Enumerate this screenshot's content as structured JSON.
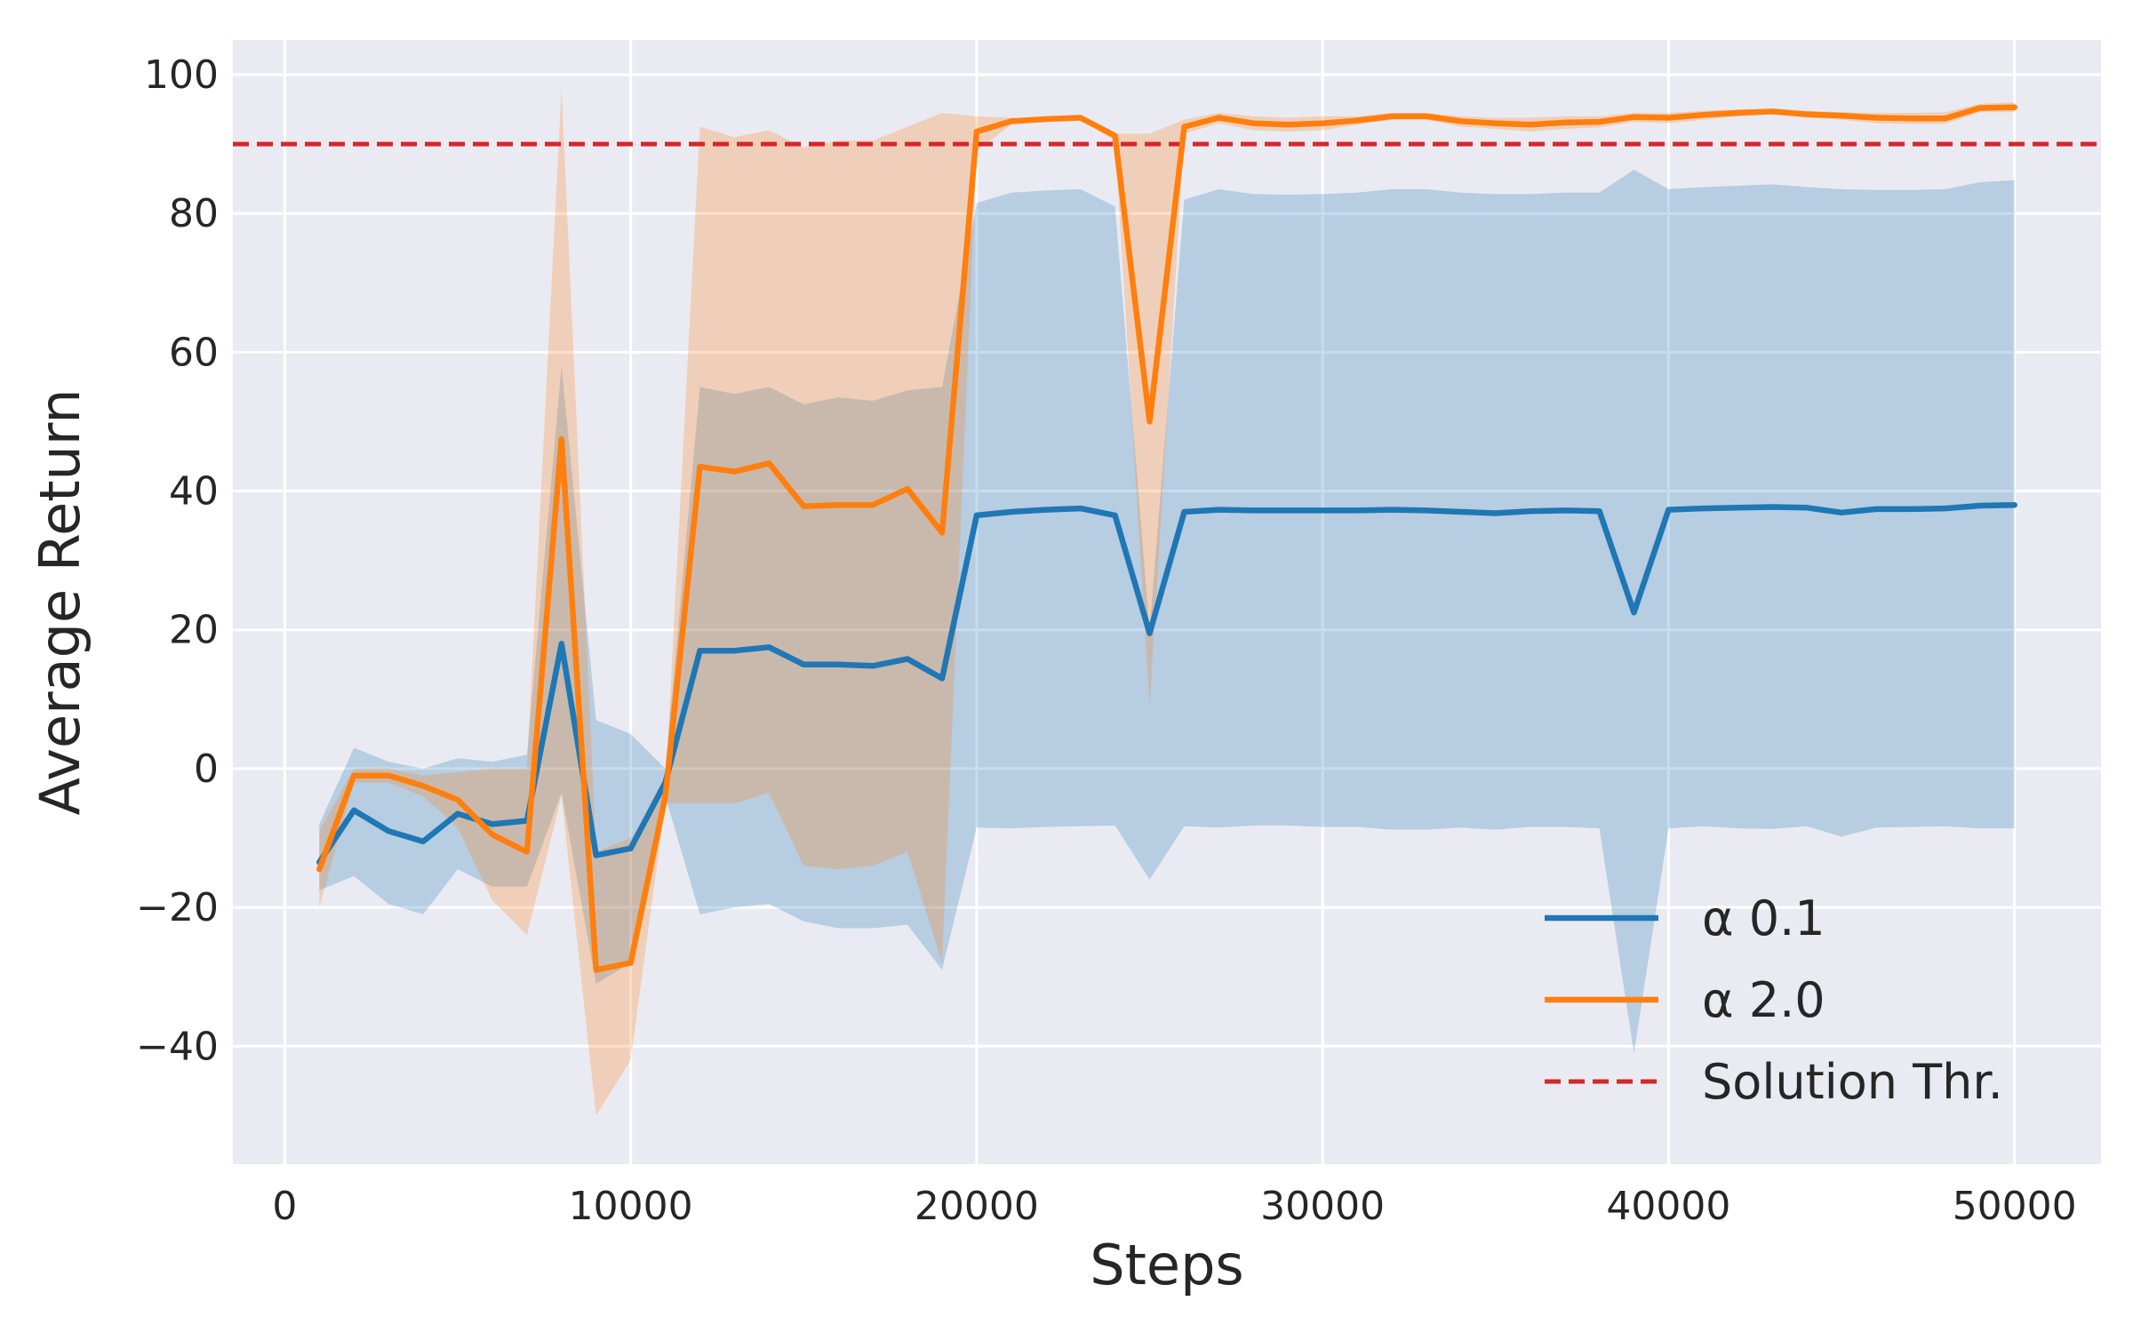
{
  "chart_data": {
    "type": "line",
    "title": "",
    "xlabel": "Steps",
    "ylabel": "Average Return",
    "xlim": [
      -1500,
      52500
    ],
    "ylim": [
      -57,
      105
    ],
    "xticks": [
      0,
      10000,
      20000,
      30000,
      40000,
      50000
    ],
    "xtick_labels": [
      "0",
      "10000",
      "20000",
      "30000",
      "40000",
      "50000"
    ],
    "yticks": [
      -40,
      -20,
      0,
      20,
      40,
      60,
      80,
      100
    ],
    "ytick_labels": [
      "−40",
      "−20",
      "0",
      "20",
      "40",
      "60",
      "80",
      "100"
    ],
    "grid": true,
    "legend_position": "lower-right",
    "x": [
      1000,
      2000,
      3000,
      4000,
      5000,
      6000,
      7000,
      8000,
      9000,
      10000,
      11000,
      12000,
      13000,
      14000,
      15000,
      16000,
      17000,
      18000,
      19000,
      20000,
      21000,
      22000,
      23000,
      24000,
      25000,
      26000,
      27000,
      28000,
      29000,
      30000,
      31000,
      32000,
      33000,
      34000,
      35000,
      36000,
      37000,
      38000,
      39000,
      40000,
      41000,
      42000,
      43000,
      44000,
      45000,
      46000,
      47000,
      48000,
      49000,
      50000
    ],
    "series": [
      {
        "name": "α 0.1",
        "color": "#1f77b4",
        "values": [
          -13.5,
          -6,
          -9,
          -10.5,
          -6.5,
          -8,
          -7.5,
          18,
          -12.5,
          -11.5,
          -2,
          17,
          17,
          17.5,
          15,
          15,
          14.8,
          15.8,
          13,
          36.5,
          37,
          37.3,
          37.5,
          36.5,
          19.5,
          37,
          37.3,
          37.2,
          37.2,
          37.2,
          37.2,
          37.3,
          37.2,
          37,
          36.8,
          37.1,
          37.2,
          37.1,
          22.5,
          37.3,
          37.5,
          37.6,
          37.7,
          37.6,
          36.9,
          37.4,
          37.4,
          37.5,
          37.9,
          38
        ],
        "band_upper": [
          -8,
          3,
          1,
          0,
          1.5,
          1,
          2,
          58,
          7,
          5,
          0,
          55,
          54,
          55,
          52.5,
          53.5,
          53,
          54.5,
          55,
          81.5,
          83,
          83.3,
          83.5,
          81,
          20,
          82,
          83.5,
          82.8,
          82.7,
          82.8,
          83,
          83.5,
          83.5,
          83,
          82.8,
          82.8,
          83,
          83,
          86.3,
          83.5,
          83.8,
          84,
          84.2,
          83.8,
          83.5,
          83.4,
          83.4,
          83.5,
          84.5,
          84.8
        ],
        "band_lower": [
          -17.5,
          -15.5,
          -19.5,
          -21,
          -14.5,
          -17,
          -17,
          -3.5,
          -31,
          -28,
          -4,
          -21,
          -20,
          -19.5,
          -22,
          -23,
          -23,
          -22.5,
          -29,
          -8.5,
          -8.6,
          -8.4,
          -8.3,
          -8.2,
          -16,
          -8.3,
          -8.5,
          -8.2,
          -8.2,
          -8.4,
          -8.4,
          -8.8,
          -8.8,
          -8.5,
          -8.8,
          -8.4,
          -8.4,
          -8.6,
          -41,
          -8.6,
          -8.3,
          -8.6,
          -8.7,
          -8.3,
          -9.8,
          -8.5,
          -8.4,
          -8.3,
          -8.6,
          -8.6
        ]
      },
      {
        "name": "α 2.0",
        "color": "#ff7f0e",
        "values": [
          -14.5,
          -1,
          -1,
          -2.5,
          -4.5,
          -9.5,
          -12,
          47.5,
          -29,
          -28,
          -4,
          43.5,
          42.8,
          44,
          37.8,
          38,
          38,
          40.3,
          34,
          91.8,
          93.3,
          93.6,
          93.8,
          91.2,
          50,
          92.5,
          93.8,
          93,
          92.8,
          93,
          93.4,
          94,
          94,
          93.3,
          93,
          92.8,
          93.1,
          93.2,
          93.9,
          93.8,
          94.2,
          94.5,
          94.7,
          94.3,
          94.1,
          93.8,
          93.7,
          93.7,
          95.2,
          95.3
        ],
        "band_upper": [
          -9,
          0,
          0,
          -1,
          -0.5,
          0,
          0,
          98,
          -12,
          -10,
          -3,
          92.5,
          91,
          92,
          89.5,
          90.5,
          90.5,
          92.5,
          94.5,
          94,
          93.8,
          93.8,
          94,
          91.5,
          91.5,
          93.5,
          94.5,
          94,
          93.8,
          94,
          94,
          94.5,
          94.5,
          94,
          93.8,
          93.8,
          94,
          94,
          94.5,
          94.5,
          94.8,
          95,
          95,
          94.8,
          94.6,
          94.5,
          94.5,
          94.6,
          95.8,
          96
        ],
        "band_lower": [
          -20,
          -2,
          -2,
          -4,
          -8.5,
          -19,
          -24,
          -4,
          -50,
          -42,
          -5,
          -5,
          -5,
          -3.5,
          -14,
          -14.5,
          -14,
          -12,
          -28,
          89,
          92.8,
          93.3,
          93.5,
          90.5,
          9,
          91.5,
          93,
          92,
          91.8,
          92,
          92.8,
          93.5,
          93.5,
          92.5,
          92.2,
          91.8,
          92.2,
          92.4,
          93.2,
          93,
          93.5,
          94,
          94.3,
          93.8,
          93.5,
          93,
          92.9,
          92.9,
          94.6,
          94.6
        ]
      }
    ],
    "hlines": [
      {
        "name": "Solution Thr.",
        "y": 90,
        "color": "#d62728",
        "style": "dashed"
      }
    ],
    "legend": [
      "α 0.1",
      "α 2.0",
      "Solution Thr."
    ]
  }
}
